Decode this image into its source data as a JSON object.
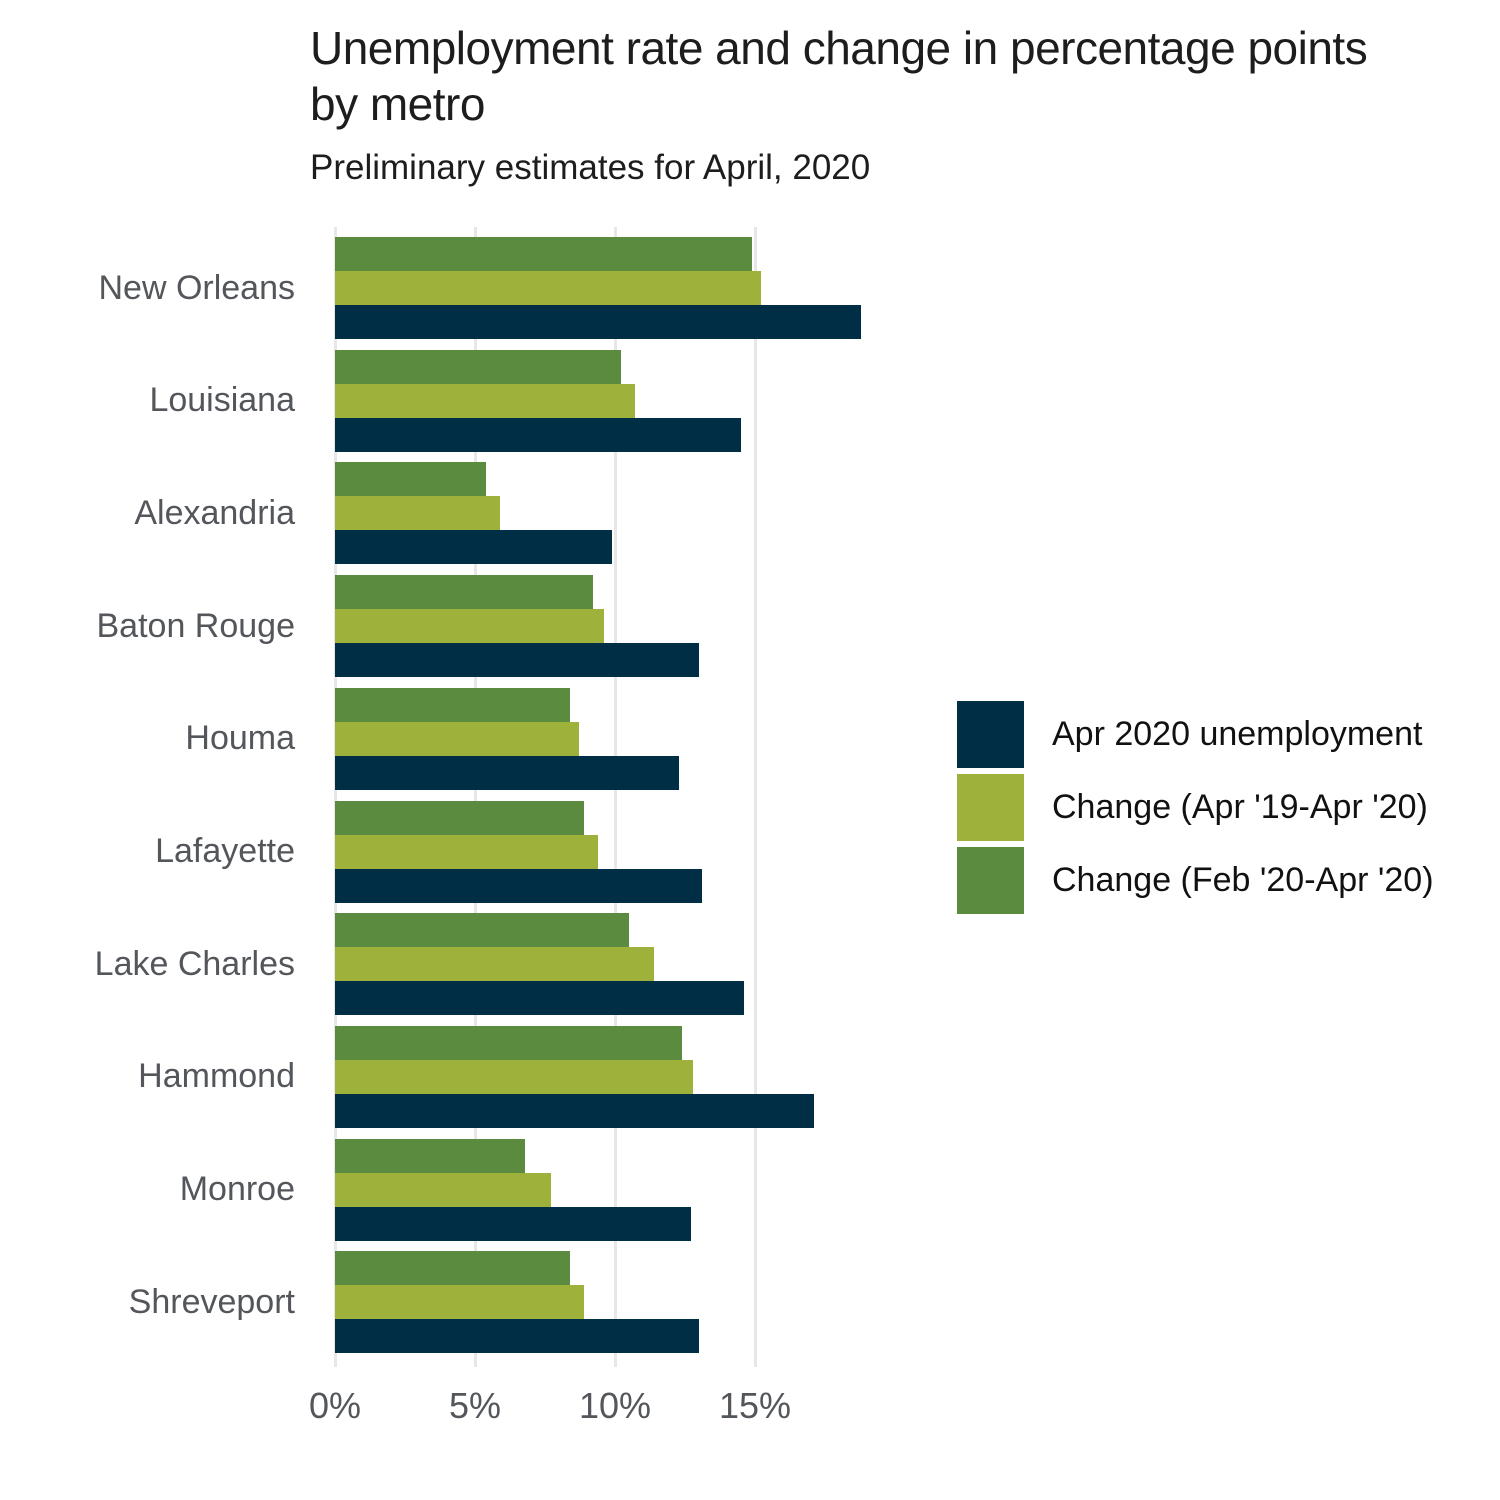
{
  "title": "Unemployment rate and change in percentage points by metro",
  "subtitle": "Preliminary estimates for April, 2020",
  "chart_data": {
    "type": "bar",
    "orientation": "horizontal",
    "title": "Unemployment rate and change in percentage points by metro",
    "subtitle": "Preliminary estimates for April, 2020",
    "categories": [
      "New Orleans",
      "Louisiana",
      "Alexandria",
      "Baton Rouge",
      "Houma",
      "Lafayette",
      "Lake Charles",
      "Hammond",
      "Monroe",
      "Shreveport"
    ],
    "series": [
      {
        "name": "Apr 2020 unemployment",
        "color": "#002f45",
        "values": [
          18.8,
          14.5,
          9.9,
          13.0,
          12.3,
          13.1,
          14.6,
          17.1,
          12.7,
          13.0
        ]
      },
      {
        "name": "Change (Apr '19-Apr '20)",
        "color": "#9eb13b",
        "values": [
          15.2,
          10.7,
          5.9,
          9.6,
          8.7,
          9.4,
          11.4,
          12.8,
          7.7,
          8.9
        ]
      },
      {
        "name": "Change (Feb '20-Apr '20)",
        "color": "#5b8b3e",
        "values": [
          14.9,
          10.2,
          5.4,
          9.2,
          8.4,
          8.9,
          10.5,
          12.4,
          6.8,
          8.4
        ]
      }
    ],
    "xlabel": "",
    "ylabel": "",
    "x_axis": {
      "tick_labels": [
        "0%",
        "5%",
        "10%",
        "15%"
      ],
      "tick_values": [
        0,
        5,
        10,
        15
      ],
      "min": 0,
      "max": 20
    },
    "grid": "vertical",
    "legend_position": "right"
  },
  "colors": {
    "background": "#ffffff",
    "gridline": "#e7e7e7",
    "axis_text": "#53565a",
    "title_text": "#1d1d1d",
    "legend_text": "#111111"
  }
}
